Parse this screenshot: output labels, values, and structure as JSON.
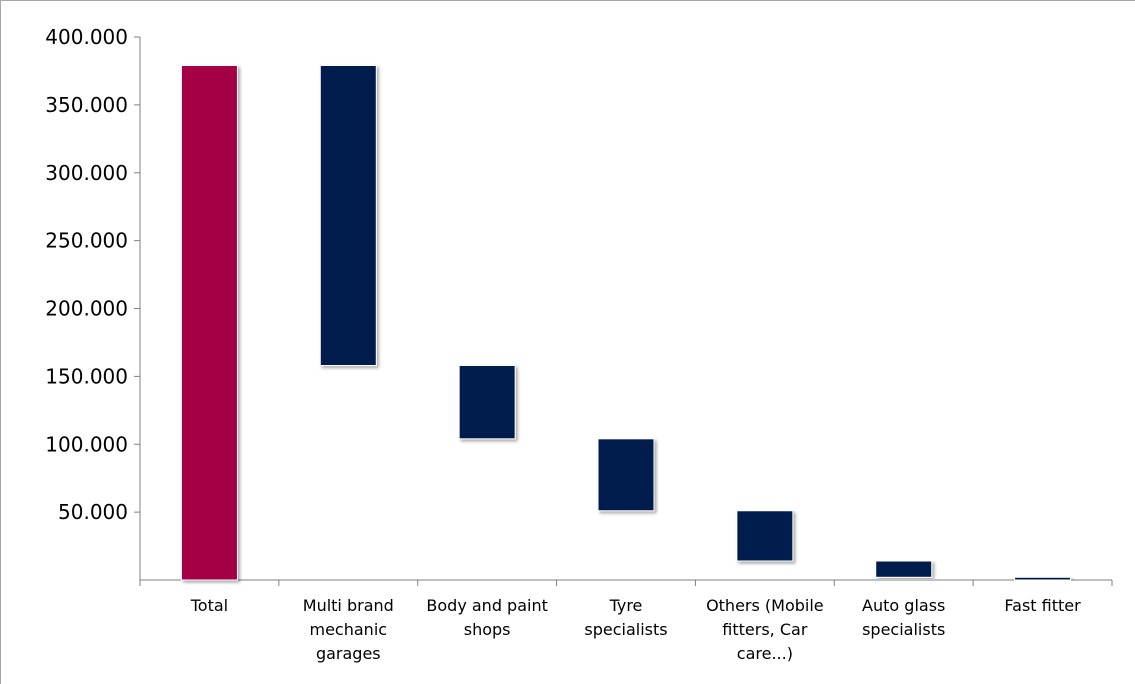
{
  "chart_data": {
    "type": "bar",
    "subtype": "waterfall",
    "title": "",
    "xlabel": "",
    "ylabel": "",
    "ylim": [
      0,
      400000
    ],
    "yticks": [
      {
        "value": 50000,
        "label": "50.000"
      },
      {
        "value": 100000,
        "label": "100.000"
      },
      {
        "value": 150000,
        "label": "150.000"
      },
      {
        "value": 200000,
        "label": "200.000"
      },
      {
        "value": 250000,
        "label": "250.000"
      },
      {
        "value": 300000,
        "label": "300.000"
      },
      {
        "value": 350000,
        "label": "350.000"
      },
      {
        "value": 400000,
        "label": "400.000"
      }
    ],
    "grid": false,
    "legend": "none",
    "colors": {
      "total": "#a50044",
      "segment": "#001a4d"
    },
    "categories": [
      [
        "Total"
      ],
      [
        "Multi brand",
        "mechanic",
        "garages"
      ],
      [
        "Body and paint",
        "shops"
      ],
      [
        "Tyre",
        "specialists"
      ],
      [
        "Others (Mobile",
        "fitters, Car",
        "care...)"
      ],
      [
        "Auto glass",
        "specialists"
      ],
      [
        "Fast fitter"
      ]
    ],
    "bars": [
      {
        "kind": "total",
        "start": 0,
        "end": 379000
      },
      {
        "kind": "segment",
        "start": 158000,
        "end": 379000
      },
      {
        "kind": "segment",
        "start": 104000,
        "end": 158000
      },
      {
        "kind": "segment",
        "start": 51000,
        "end": 104000
      },
      {
        "kind": "segment",
        "start": 14000,
        "end": 51000
      },
      {
        "kind": "segment",
        "start": 2000,
        "end": 14000
      },
      {
        "kind": "segment",
        "start": 0,
        "end": 2000
      }
    ]
  }
}
